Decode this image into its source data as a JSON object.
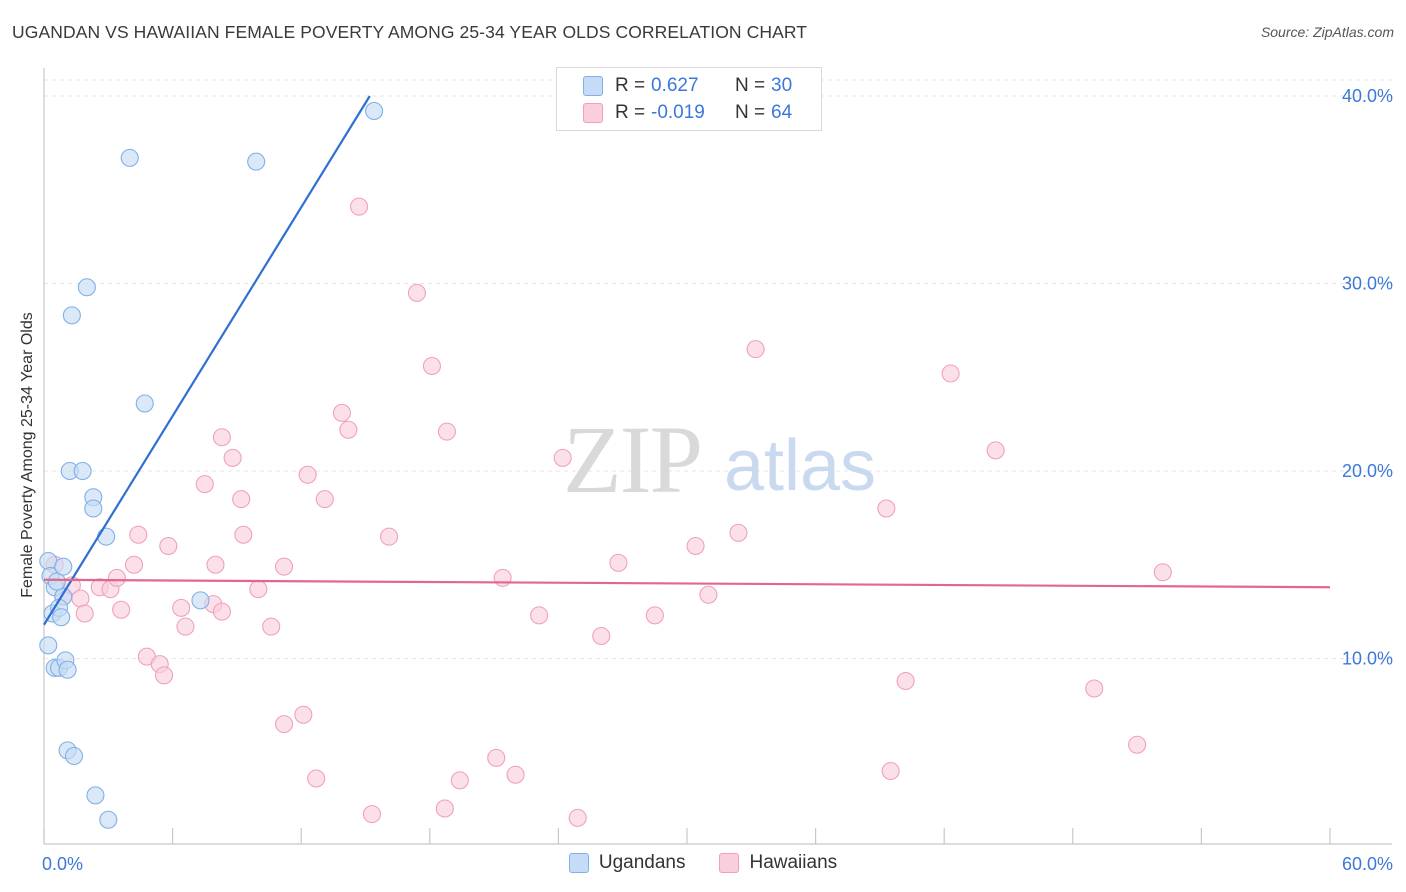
{
  "title": "UGANDAN VS HAWAIIAN FEMALE POVERTY AMONG 25-34 YEAR OLDS CORRELATION CHART",
  "source": "Source: ZipAtlas.com",
  "watermark": {
    "zip": "ZIP",
    "atlas": "atlas"
  },
  "legend_top": {
    "rows": [
      {
        "r_label": "R =",
        "r_value": "0.627",
        "n_label": "N =",
        "n_value": "30",
        "color": "#7fb0e8",
        "fill": "#c6dbf5"
      },
      {
        "r_label": "R =",
        "r_value": "-0.019",
        "n_label": "N =",
        "n_value": "64",
        "color": "#f0a0bd",
        "fill": "#f9cfdd"
      }
    ]
  },
  "legend_bottom": [
    {
      "label": "Ugandans",
      "color": "#7fb0e8",
      "fill": "#c6dbf5"
    },
    {
      "label": "Hawaiians",
      "color": "#f0a0bd",
      "fill": "#f9cfdd"
    }
  ],
  "colors": {
    "blue_line": "#2f6fd1",
    "pink_line": "#e2678f",
    "tick_text": "#3b78d8",
    "grid": "#e6e6e6"
  },
  "chart_data": {
    "type": "scatter",
    "title": "UGANDAN VS HAWAIIAN FEMALE POVERTY AMONG 25-34 YEAR OLDS CORRELATION CHART",
    "xlabel": "",
    "ylabel": "Female Poverty Among 25-34 Year Olds",
    "xlim": [
      0,
      60
    ],
    "ylim": [
      0,
      40
    ],
    "x_tick_labels": [
      "0.0%",
      "60.0%"
    ],
    "y_ticks": [
      10,
      20,
      30,
      40
    ],
    "y_tick_labels": [
      "10.0%",
      "20.0%",
      "30.0%",
      "40.0%"
    ],
    "grid": true,
    "series": [
      {
        "name": "Ugandans",
        "points": [
          [
            0.2,
            15.2
          ],
          [
            0.3,
            14.4
          ],
          [
            0.4,
            12.4
          ],
          [
            0.2,
            10.7
          ],
          [
            0.5,
            9.5
          ],
          [
            0.7,
            9.5
          ],
          [
            0.5,
            13.8
          ],
          [
            0.9,
            13.3
          ],
          [
            0.7,
            12.7
          ],
          [
            0.8,
            12.2
          ],
          [
            0.6,
            14.1
          ],
          [
            0.9,
            14.9
          ],
          [
            1.0,
            9.9
          ],
          [
            1.1,
            9.4
          ],
          [
            1.1,
            5.1
          ],
          [
            1.4,
            4.8
          ],
          [
            1.2,
            20.0
          ],
          [
            1.8,
            20.0
          ],
          [
            2.3,
            18.6
          ],
          [
            2.3,
            18.0
          ],
          [
            2.9,
            16.5
          ],
          [
            1.3,
            28.3
          ],
          [
            2.0,
            29.8
          ],
          [
            4.0,
            36.7
          ],
          [
            4.7,
            23.6
          ],
          [
            7.3,
            13.1
          ],
          [
            9.9,
            36.5
          ],
          [
            15.4,
            39.2
          ],
          [
            2.4,
            2.7
          ],
          [
            3.0,
            1.4
          ]
        ],
        "trend": {
          "x": [
            0.0,
            15.2
          ],
          "y": [
            11.8,
            40.0
          ]
        }
      },
      {
        "name": "Hawaiians",
        "points": [
          [
            0.5,
            15.0
          ],
          [
            0.9,
            13.3
          ],
          [
            1.3,
            13.9
          ],
          [
            1.7,
            13.2
          ],
          [
            1.9,
            12.4
          ],
          [
            2.6,
            13.8
          ],
          [
            3.1,
            13.7
          ],
          [
            3.4,
            14.3
          ],
          [
            3.6,
            12.6
          ],
          [
            4.2,
            15.0
          ],
          [
            4.4,
            16.6
          ],
          [
            4.8,
            10.1
          ],
          [
            5.4,
            9.7
          ],
          [
            5.6,
            9.1
          ],
          [
            5.8,
            16.0
          ],
          [
            6.4,
            12.7
          ],
          [
            6.6,
            11.7
          ],
          [
            7.5,
            19.3
          ],
          [
            7.9,
            12.9
          ],
          [
            8.0,
            15.0
          ],
          [
            8.3,
            21.8
          ],
          [
            8.3,
            12.5
          ],
          [
            8.8,
            20.7
          ],
          [
            9.2,
            18.5
          ],
          [
            9.3,
            16.6
          ],
          [
            10.0,
            13.7
          ],
          [
            10.6,
            11.7
          ],
          [
            11.2,
            14.9
          ],
          [
            11.2,
            6.5
          ],
          [
            12.1,
            7.0
          ],
          [
            12.3,
            19.8
          ],
          [
            12.7,
            3.6
          ],
          [
            13.1,
            18.5
          ],
          [
            13.9,
            23.1
          ],
          [
            14.2,
            22.2
          ],
          [
            14.7,
            34.1
          ],
          [
            15.3,
            1.7
          ],
          [
            16.1,
            16.5
          ],
          [
            17.4,
            29.5
          ],
          [
            18.1,
            25.6
          ],
          [
            18.7,
            2.0
          ],
          [
            18.8,
            22.1
          ],
          [
            19.4,
            3.5
          ],
          [
            21.1,
            4.7
          ],
          [
            21.4,
            14.3
          ],
          [
            22.0,
            3.8
          ],
          [
            23.1,
            12.3
          ],
          [
            24.2,
            20.7
          ],
          [
            24.9,
            1.5
          ],
          [
            26.0,
            11.2
          ],
          [
            26.8,
            15.1
          ],
          [
            28.5,
            12.3
          ],
          [
            30.4,
            16.0
          ],
          [
            31.0,
            13.4
          ],
          [
            32.4,
            16.7
          ],
          [
            33.2,
            26.5
          ],
          [
            39.3,
            18.0
          ],
          [
            39.5,
            4.0
          ],
          [
            40.2,
            8.8
          ],
          [
            42.3,
            25.2
          ],
          [
            44.4,
            21.1
          ],
          [
            49.0,
            8.4
          ],
          [
            51.0,
            5.4
          ],
          [
            52.2,
            14.6
          ]
        ],
        "trend": {
          "x": [
            0.0,
            60.0
          ],
          "y": [
            14.2,
            13.8
          ]
        }
      }
    ]
  }
}
